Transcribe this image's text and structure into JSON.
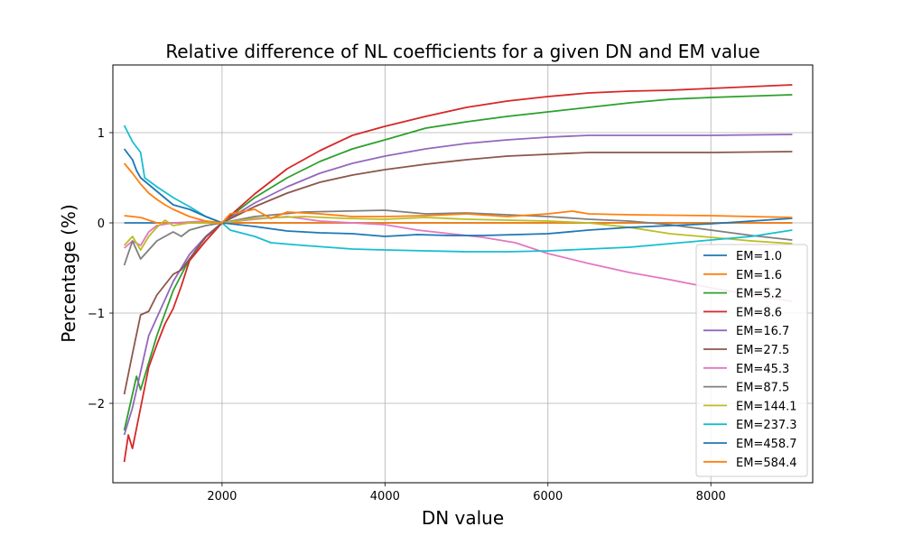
{
  "chart_data": {
    "type": "line",
    "title": "Relative difference of NL coefficients for a given DN and EM value",
    "xlabel": "DN value",
    "ylabel": "Percentage (%)",
    "xlim": [
      660,
      9250
    ],
    "ylim": [
      -2.88,
      1.75
    ],
    "xticks": [
      2000,
      4000,
      6000,
      8000
    ],
    "yticks": [
      -2,
      -1,
      0,
      1
    ],
    "grid": true,
    "legend_position": "lower-right",
    "series": [
      {
        "name": "EM=1.0",
        "color": "#1f77b4",
        "x": [
          800,
          1000,
          1200,
          1400,
          1600,
          1800,
          2000,
          2400,
          2800,
          3200,
          3600,
          4000,
          4400,
          4800,
          5200,
          5600,
          6000,
          6400,
          7000,
          7600,
          8200,
          9000
        ],
        "y": [
          0.0,
          0.0,
          0.0,
          0.0,
          0.0,
          0.0,
          0.0,
          0.0,
          0.0,
          0.0,
          0.0,
          0.0,
          0.0,
          0.0,
          0.0,
          0.0,
          0.0,
          0.0,
          0.0,
          0.0,
          0.0,
          0.0
        ]
      },
      {
        "name": "EM=1.6",
        "color": "#ff7f0e",
        "x": [
          800,
          1000,
          1200,
          1600,
          2000,
          2400,
          2800,
          3200,
          3600,
          4000,
          4400,
          4800,
          5200,
          5600,
          6000,
          7000,
          8000,
          9000
        ],
        "y": [
          0.08,
          0.06,
          0.0,
          0.0,
          0.0,
          0.0,
          0.0,
          0.0,
          0.0,
          0.0,
          0.0,
          0.0,
          0.0,
          0.0,
          0.0,
          0.0,
          0.0,
          0.0
        ]
      },
      {
        "name": "EM=5.2",
        "color": "#2ca02c",
        "x": [
          800,
          900,
          950,
          1000,
          1100,
          1200,
          1400,
          1600,
          1800,
          2000,
          2400,
          2800,
          3200,
          3600,
          4000,
          4500,
          5000,
          5500,
          6000,
          6500,
          7000,
          7500,
          8000,
          9000
        ],
        "y": [
          -2.3,
          -1.9,
          -1.7,
          -1.85,
          -1.55,
          -1.25,
          -0.75,
          -0.4,
          -0.15,
          0.0,
          0.28,
          0.5,
          0.68,
          0.82,
          0.92,
          1.05,
          1.12,
          1.18,
          1.23,
          1.28,
          1.33,
          1.37,
          1.39,
          1.42
        ]
      },
      {
        "name": "EM=8.6",
        "color": "#d62728",
        "x": [
          800,
          850,
          900,
          1000,
          1100,
          1200,
          1300,
          1400,
          1500,
          1600,
          1800,
          2000,
          2400,
          2800,
          3200,
          3600,
          4000,
          4500,
          5000,
          5500,
          6000,
          6500,
          7000,
          7500,
          8000,
          9000
        ],
        "y": [
          -2.65,
          -2.35,
          -2.5,
          -2.05,
          -1.6,
          -1.35,
          -1.12,
          -0.95,
          -0.7,
          -0.42,
          -0.2,
          0.0,
          0.32,
          0.6,
          0.8,
          0.97,
          1.07,
          1.18,
          1.28,
          1.35,
          1.4,
          1.44,
          1.46,
          1.47,
          1.49,
          1.53
        ]
      },
      {
        "name": "EM=16.7",
        "color": "#9467bd",
        "x": [
          800,
          900,
          1000,
          1100,
          1200,
          1400,
          1600,
          1800,
          2000,
          2400,
          2800,
          3200,
          3600,
          4000,
          4500,
          5000,
          5500,
          6000,
          6500,
          7000,
          8000,
          9000
        ],
        "y": [
          -2.35,
          -2.05,
          -1.65,
          -1.25,
          -1.05,
          -0.65,
          -0.35,
          -0.15,
          0.0,
          0.22,
          0.4,
          0.55,
          0.66,
          0.74,
          0.82,
          0.88,
          0.92,
          0.95,
          0.97,
          0.97,
          0.97,
          0.98
        ]
      },
      {
        "name": "EM=27.5",
        "color": "#8c564b",
        "x": [
          800,
          900,
          1000,
          1100,
          1200,
          1400,
          1500,
          1600,
          1800,
          2000,
          2400,
          2800,
          3200,
          3600,
          4000,
          4500,
          5000,
          5500,
          6000,
          6500,
          7000,
          8000,
          9000
        ],
        "y": [
          -1.9,
          -1.45,
          -1.02,
          -0.98,
          -0.8,
          -0.57,
          -0.52,
          -0.4,
          -0.16,
          0.0,
          0.18,
          0.33,
          0.45,
          0.53,
          0.59,
          0.65,
          0.7,
          0.74,
          0.76,
          0.78,
          0.78,
          0.78,
          0.79
        ]
      },
      {
        "name": "EM=45.3",
        "color": "#e377c2",
        "x": [
          800,
          900,
          1000,
          1100,
          1200,
          1400,
          1600,
          1800,
          2000,
          2400,
          2800,
          3200,
          3600,
          4000,
          4400,
          4800,
          5200,
          5600,
          6000,
          6500,
          7000,
          7500,
          8000,
          8500,
          9000
        ],
        "y": [
          -0.28,
          -0.2,
          -0.25,
          -0.1,
          -0.03,
          0.0,
          0.01,
          0.02,
          0.0,
          0.04,
          0.07,
          0.02,
          0.0,
          -0.02,
          -0.08,
          -0.12,
          -0.16,
          -0.22,
          -0.34,
          -0.45,
          -0.55,
          -0.63,
          -0.72,
          -0.8,
          -0.87
        ]
      },
      {
        "name": "EM=87.5",
        "color": "#7f7f7f",
        "x": [
          800,
          900,
          950,
          1000,
          1100,
          1200,
          1300,
          1400,
          1500,
          1600,
          1800,
          2000,
          2400,
          3000,
          3500,
          4000,
          4500,
          5000,
          5500,
          6000,
          6500,
          7000,
          7500,
          8000,
          8500,
          9000
        ],
        "y": [
          -0.47,
          -0.2,
          -0.3,
          -0.4,
          -0.3,
          -0.2,
          -0.15,
          -0.1,
          -0.15,
          -0.08,
          -0.03,
          0.0,
          0.07,
          0.12,
          0.13,
          0.14,
          0.1,
          0.11,
          0.09,
          0.07,
          0.04,
          0.02,
          -0.02,
          -0.08,
          -0.14,
          -0.19
        ]
      },
      {
        "name": "EM=144.1",
        "color": "#bcbd22",
        "x": [
          800,
          900,
          1000,
          1100,
          1200,
          1300,
          1400,
          1600,
          1800,
          2000,
          2400,
          3000,
          3500,
          4000,
          4500,
          5000,
          5500,
          6000,
          6500,
          7000,
          7500,
          8000,
          8500,
          9000
        ],
        "y": [
          -0.25,
          -0.15,
          -0.3,
          -0.15,
          -0.05,
          0.03,
          -0.03,
          0.0,
          0.0,
          0.0,
          0.05,
          0.07,
          0.05,
          0.04,
          0.06,
          0.04,
          0.03,
          0.02,
          0.0,
          -0.05,
          -0.12,
          -0.16,
          -0.2,
          -0.23
        ]
      },
      {
        "name": "EM=237.3",
        "color": "#17becf",
        "x": [
          800,
          900,
          1000,
          1050,
          1200,
          1400,
          1600,
          1800,
          2000,
          2100,
          2400,
          2600,
          3000,
          3600,
          4000,
          4500,
          5000,
          5500,
          6000,
          6500,
          7000,
          7500,
          8000,
          8500,
          9000
        ],
        "y": [
          1.08,
          0.9,
          0.78,
          0.5,
          0.4,
          0.28,
          0.18,
          0.07,
          0.0,
          -0.08,
          -0.15,
          -0.22,
          -0.25,
          -0.29,
          -0.3,
          -0.31,
          -0.32,
          -0.32,
          -0.31,
          -0.29,
          -0.27,
          -0.23,
          -0.19,
          -0.15,
          -0.08
        ]
      },
      {
        "name": "EM=458.7",
        "color": "#1f77b4",
        "x": [
          800,
          900,
          950,
          1000,
          1200,
          1400,
          1600,
          1800,
          2000,
          2400,
          2800,
          3200,
          3600,
          4000,
          4400,
          4800,
          5200,
          5600,
          6000,
          6500,
          7000,
          7500,
          8000,
          8500,
          9000
        ],
        "y": [
          0.82,
          0.7,
          0.58,
          0.5,
          0.35,
          0.2,
          0.15,
          0.07,
          0.0,
          -0.04,
          -0.09,
          -0.11,
          -0.12,
          -0.15,
          -0.13,
          -0.14,
          -0.14,
          -0.13,
          -0.12,
          -0.08,
          -0.05,
          -0.03,
          -0.01,
          0.02,
          0.05
        ]
      },
      {
        "name": "EM=584.4",
        "color": "#ff7f0e",
        "x": [
          800,
          900,
          1000,
          1100,
          1200,
          1300,
          1400,
          1600,
          1800,
          2000,
          2100,
          2400,
          2600,
          2800,
          3200,
          3600,
          4000,
          4500,
          5000,
          5500,
          6000,
          6300,
          6500,
          7000,
          8000,
          9000
        ],
        "y": [
          0.66,
          0.55,
          0.43,
          0.33,
          0.26,
          0.2,
          0.15,
          0.07,
          0.02,
          0.0,
          0.1,
          0.15,
          0.05,
          0.12,
          0.1,
          0.07,
          0.07,
          0.08,
          0.1,
          0.07,
          0.1,
          0.13,
          0.1,
          0.09,
          0.08,
          0.06
        ]
      }
    ]
  }
}
